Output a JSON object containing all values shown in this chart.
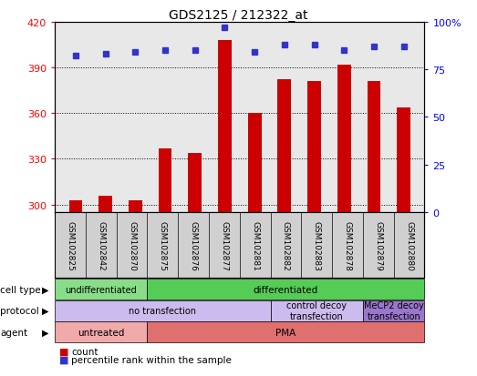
{
  "title": "GDS2125 / 212322_at",
  "samples": [
    "GSM102825",
    "GSM102842",
    "GSM102870",
    "GSM102875",
    "GSM102876",
    "GSM102877",
    "GSM102881",
    "GSM102882",
    "GSM102883",
    "GSM102878",
    "GSM102879",
    "GSM102880"
  ],
  "counts": [
    303,
    306,
    303,
    337,
    334,
    408,
    360,
    382,
    381,
    392,
    381,
    364
  ],
  "percentiles": [
    82,
    83,
    84,
    85,
    85,
    97,
    84,
    88,
    88,
    85,
    87,
    87
  ],
  "ylim_left": [
    295,
    420
  ],
  "ylim_right": [
    0,
    100
  ],
  "yticks_left": [
    300,
    330,
    360,
    390,
    420
  ],
  "yticks_right": [
    0,
    25,
    50,
    75,
    100
  ],
  "bar_color": "#cc0000",
  "dot_color": "#3333cc",
  "bar_width": 0.45,
  "cell_type_segments": [
    {
      "text": "undifferentiated",
      "start": 0,
      "end": 3,
      "color": "#88dd88"
    },
    {
      "text": "differentiated",
      "start": 3,
      "end": 12,
      "color": "#55cc55"
    }
  ],
  "protocol_segments": [
    {
      "text": "no transfection",
      "start": 0,
      "end": 7,
      "color": "#ccbbee"
    },
    {
      "text": "control decoy\ntransfection",
      "start": 7,
      "end": 10,
      "color": "#ccbbee"
    },
    {
      "text": "MeCP2 decoy\ntransfection",
      "start": 10,
      "end": 12,
      "color": "#9977cc"
    }
  ],
  "agent_segments": [
    {
      "text": "untreated",
      "start": 0,
      "end": 3,
      "color": "#f0aaaa"
    },
    {
      "text": "PMA",
      "start": 3,
      "end": 12,
      "color": "#e07070"
    }
  ],
  "row_labels": [
    "cell type",
    "protocol",
    "agent"
  ],
  "legend_items": [
    {
      "color": "#cc0000",
      "label": "count"
    },
    {
      "color": "#3333cc",
      "label": "percentile rank within the sample"
    }
  ],
  "background_color": "#ffffff",
  "plot_bg_color": "#e8e8e8",
  "xticklabel_bg": "#d0d0d0"
}
